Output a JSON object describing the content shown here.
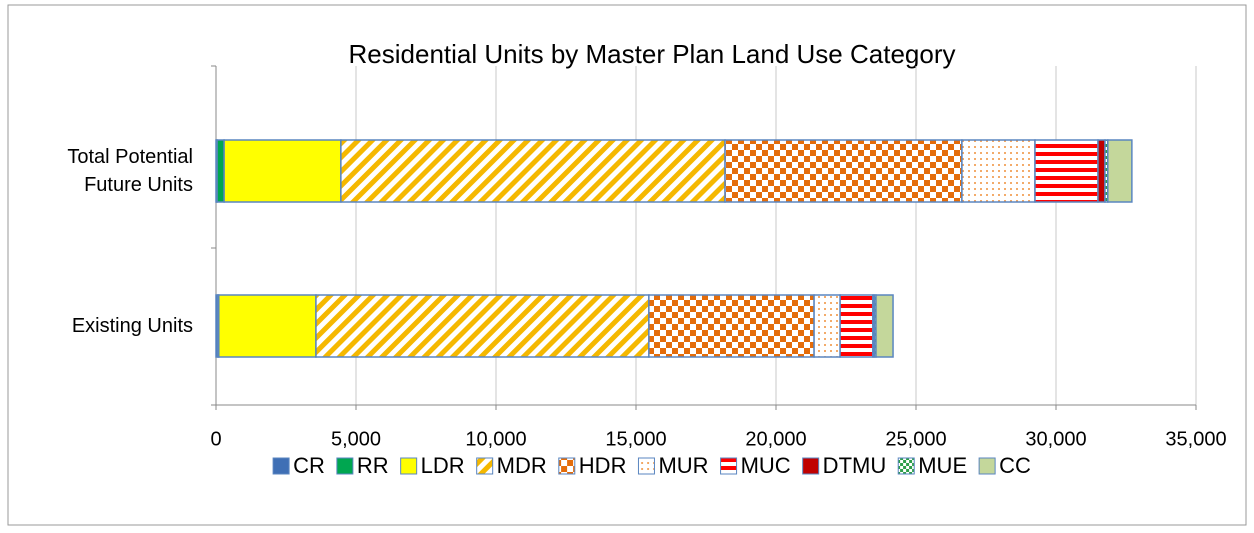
{
  "chart_data": {
    "type": "stacked-barh",
    "title": "Residential Units by Master Plan Land Use Category",
    "categories": [
      "Total Potential Future Units",
      "Existing Units"
    ],
    "series": [
      {
        "name": "CR",
        "color": "#3f6fb5",
        "pattern": "solid",
        "values": [
          40,
          60
        ]
      },
      {
        "name": "RR",
        "color": "#00a650",
        "pattern": "solid",
        "values": [
          250,
          40
        ]
      },
      {
        "name": "LDR",
        "color": "#ffff00",
        "pattern": "solid",
        "values": [
          4170,
          3470
        ]
      },
      {
        "name": "MDR",
        "color": "#f5b800",
        "pattern": "diagonal",
        "values": [
          13720,
          11890
        ]
      },
      {
        "name": "HDR",
        "color": "#e46c0a",
        "pattern": "checker",
        "values": [
          8460,
          5900
        ]
      },
      {
        "name": "MUR",
        "color": "#f0903a",
        "pattern": "dots",
        "values": [
          2610,
          930
        ]
      },
      {
        "name": "MUC",
        "color": "#ff0000",
        "pattern": "hstripes",
        "values": [
          2250,
          1170
        ]
      },
      {
        "name": "DTMU",
        "color": "#c00000",
        "pattern": "solid",
        "values": [
          250,
          50
        ]
      },
      {
        "name": "MUE",
        "color": "#2e9e4a",
        "pattern": "checker-small",
        "values": [
          100,
          60
        ]
      },
      {
        "name": "CC",
        "color": "#c4d79b",
        "pattern": "solid",
        "values": [
          860,
          610
        ]
      }
    ],
    "xlim": [
      0,
      35000
    ],
    "xticks": [
      0,
      {
        "value": 5000,
        "label": "5,000"
      },
      {
        "value": 10000,
        "label": "10,000"
      },
      {
        "value": 15000,
        "label": "15,000"
      },
      {
        "value": 20000,
        "label": "20,000"
      },
      {
        "value": 25000,
        "label": "25,000"
      },
      {
        "value": 30000,
        "label": "30,000"
      },
      {
        "value": 35000,
        "label": "35,000"
      }
    ],
    "grid": true,
    "legend": "bottom"
  }
}
